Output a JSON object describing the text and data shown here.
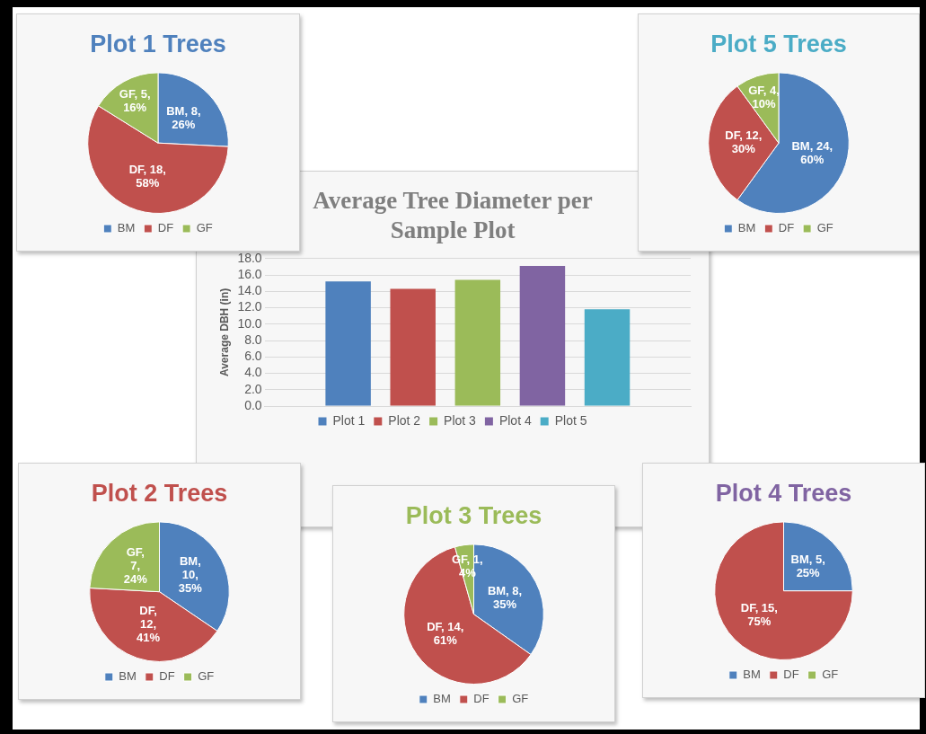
{
  "chart_data": [
    {
      "type": "pie",
      "title": "Plot 1 Trees",
      "categories": [
        "BM",
        "DF",
        "GF"
      ],
      "values": [
        8,
        18,
        5
      ],
      "colors": [
        "#4f81bd",
        "#c0504d",
        "#9bbb59"
      ],
      "value_labels": [
        "BM, 8, 26%",
        "DF, 18, 58%",
        "GF, 5, 16%"
      ],
      "legend": "bottom"
    },
    {
      "type": "pie",
      "title": "Plot 5 Trees",
      "categories": [
        "BM",
        "DF",
        "GF"
      ],
      "values": [
        24,
        12,
        4
      ],
      "colors": [
        "#4f81bd",
        "#c0504d",
        "#9bbb59"
      ],
      "value_labels": [
        "BM, 24, 60%",
        "DF, 12, 30%",
        "GF, 4, 10%"
      ],
      "legend": "bottom"
    },
    {
      "type": "bar",
      "title": "Average Tree Diameter per Sample Plot",
      "ylabel": "Average DBH (in)",
      "categories": [
        null
      ],
      "series": [
        {
          "name": "Plot 1",
          "color": "#4f81bd",
          "values": [
            15.2
          ]
        },
        {
          "name": "Plot 2",
          "color": "#c0504d",
          "values": [
            14.3
          ]
        },
        {
          "name": "Plot 3",
          "color": "#9bbb59",
          "values": [
            15.4
          ]
        },
        {
          "name": "Plot 4",
          "color": "#8064a2",
          "values": [
            17.1
          ]
        },
        {
          "name": "Plot 5",
          "color": "#4bacc6",
          "values": [
            11.8
          ]
        }
      ],
      "ylim": [
        0,
        18
      ],
      "yticks": [
        {
          "value": 0,
          "label": "0.0"
        },
        {
          "value": 2,
          "label": "2.0"
        },
        {
          "value": 4,
          "label": "4.0"
        },
        {
          "value": 6,
          "label": "6.0"
        },
        {
          "value": 8,
          "label": "8.0"
        },
        {
          "value": 10,
          "label": "10.0"
        },
        {
          "value": 12,
          "label": "12.0"
        },
        {
          "value": 14,
          "label": "14.0"
        },
        {
          "value": 16,
          "label": "16.0"
        },
        {
          "value": 18,
          "label": "18.0"
        }
      ],
      "grid": "y",
      "legend": "bottom"
    },
    {
      "type": "pie",
      "title": "Plot 2 Trees",
      "categories": [
        "BM",
        "DF",
        "GF"
      ],
      "values": [
        10,
        12,
        7
      ],
      "colors": [
        "#4f81bd",
        "#c0504d",
        "#9bbb59"
      ],
      "value_labels": [
        "BM, 10, 35%",
        "DF, 12, 41%",
        "GF, 7, 24%"
      ],
      "legend": "bottom"
    },
    {
      "type": "pie",
      "title": "Plot 3 Trees",
      "categories": [
        "BM",
        "DF",
        "GF"
      ],
      "values": [
        8,
        14,
        1
      ],
      "colors": [
        "#4f81bd",
        "#c0504d",
        "#9bbb59"
      ],
      "value_labels": [
        "BM, 8, 35%",
        "DF, 14, 61%",
        "GF, 1, 4%"
      ],
      "legend": "bottom"
    },
    {
      "type": "pie",
      "title": "Plot 4 Trees",
      "categories": [
        "BM",
        "DF",
        "GF"
      ],
      "values": [
        5,
        15,
        0
      ],
      "colors": [
        "#4f81bd",
        "#c0504d",
        "#9bbb59"
      ],
      "value_labels": [
        "BM, 5, 25%",
        "DF, 15, 75%",
        null
      ],
      "legend": "bottom"
    }
  ]
}
